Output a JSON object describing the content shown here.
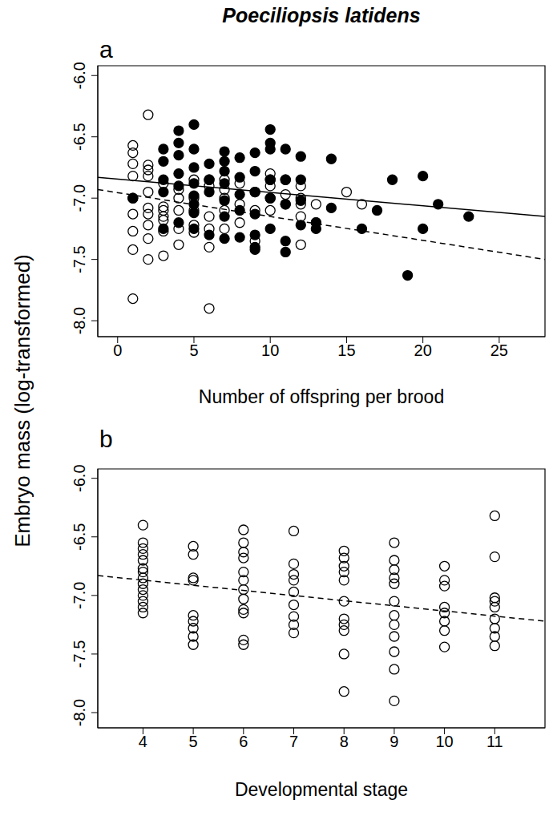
{
  "title": "Poeciliopsis latidens",
  "y_label": "Embryo mass (log-transformed)",
  "chart_data": [
    {
      "type": "scatter",
      "panel": "a",
      "x_label": "Number of offspring per brood",
      "xlim": [
        -1.3,
        28
      ],
      "xticks": [
        0,
        5,
        10,
        15,
        20,
        25
      ],
      "ylim": [
        -8.13,
        -5.92
      ],
      "yticks": [
        {
          "value": -8,
          "label": "-8.0"
        },
        -7.5,
        {
          "value": -7,
          "label": "-7.0"
        },
        -6.5,
        {
          "value": -6,
          "label": "-6.0"
        }
      ],
      "series": [
        {
          "type": "scatter",
          "marker": "open",
          "color": "#000000",
          "x": [
            1,
            1,
            1,
            1,
            1,
            1,
            1,
            1,
            1,
            2,
            2,
            2,
            2,
            2,
            2,
            2,
            2,
            2,
            2,
            3,
            3,
            3,
            3,
            3,
            3,
            3,
            4,
            4,
            4,
            4,
            4,
            5,
            5,
            5,
            5,
            5,
            6,
            6,
            6,
            6,
            6,
            6,
            7,
            7,
            7,
            7,
            7,
            8,
            8,
            8,
            9,
            9,
            9,
            10,
            10,
            10,
            10,
            10,
            11,
            11,
            11,
            12,
            12,
            12,
            12,
            12,
            13,
            13,
            15,
            16
          ],
          "values": [
            -6.57,
            -6.63,
            -6.72,
            -6.82,
            -7.0,
            -7.13,
            -7.27,
            -7.42,
            -7.82,
            -6.32,
            -6.73,
            -6.77,
            -6.82,
            -6.95,
            -7.08,
            -7.13,
            -7.22,
            -7.33,
            -7.5,
            -6.88,
            -7.07,
            -7.1,
            -7.15,
            -7.18,
            -7.27,
            -7.47,
            -6.93,
            -7.0,
            -7.1,
            -7.25,
            -7.38,
            -6.85,
            -7.0,
            -7.1,
            -7.22,
            -7.28,
            -6.85,
            -6.9,
            -7.15,
            -7.25,
            -7.4,
            -7.9,
            -6.85,
            -6.93,
            -7.0,
            -7.1,
            -7.25,
            -6.88,
            -7.05,
            -7.2,
            -6.95,
            -7.1,
            -7.35,
            -6.8,
            -6.85,
            -6.9,
            -7.0,
            -7.1,
            -6.85,
            -6.97,
            -7.05,
            -6.9,
            -7.0,
            -7.05,
            -7.15,
            -7.38,
            -7.05,
            -7.2,
            -6.95,
            -7.05
          ]
        },
        {
          "type": "scatter",
          "marker": "filled",
          "color": "#000000",
          "x": [
            1,
            3,
            3,
            3,
            3,
            3,
            4,
            4,
            4,
            4,
            4,
            4,
            5,
            5,
            5,
            5,
            5,
            5,
            5,
            5,
            6,
            6,
            6,
            6,
            7,
            7,
            7,
            7,
            7,
            7,
            7,
            8,
            8,
            8,
            8,
            8,
            9,
            9,
            9,
            9,
            9,
            9,
            9,
            10,
            10,
            10,
            10,
            10,
            10,
            11,
            11,
            11,
            11,
            11,
            12,
            12,
            12,
            12,
            13,
            13,
            14,
            14,
            16,
            17,
            18,
            19,
            20,
            20,
            21,
            23
          ],
          "values": [
            -7.0,
            -6.6,
            -6.7,
            -6.85,
            -6.95,
            -7.25,
            -6.45,
            -6.55,
            -6.65,
            -6.8,
            -6.9,
            -7.2,
            -6.4,
            -6.6,
            -6.75,
            -6.88,
            -6.98,
            -7.05,
            -7.12,
            -7.25,
            -6.72,
            -6.85,
            -6.95,
            -7.3,
            -6.62,
            -6.7,
            -6.78,
            -6.88,
            -7.02,
            -7.15,
            -7.33,
            -6.67,
            -6.83,
            -6.97,
            -7.1,
            -7.32,
            -6.63,
            -6.78,
            -6.95,
            -7.13,
            -7.3,
            -7.4,
            -7.42,
            -6.44,
            -6.55,
            -6.6,
            -6.85,
            -7.0,
            -7.25,
            -6.6,
            -6.85,
            -7.05,
            -7.35,
            -7.44,
            -6.66,
            -6.85,
            -7.02,
            -7.22,
            -7.2,
            -7.25,
            -6.68,
            -7.08,
            -7.25,
            -7.1,
            -6.85,
            -7.63,
            -6.82,
            -7.25,
            -7.05,
            -7.15
          ]
        },
        {
          "type": "line",
          "line_style": "solid",
          "color": "#000000",
          "x": [
            -1.3,
            28
          ],
          "values": [
            -6.83,
            -7.15
          ]
        },
        {
          "type": "line",
          "line_style": "dashed",
          "color": "#000000",
          "x": [
            -1.3,
            28
          ],
          "values": [
            -6.93,
            -7.5
          ]
        }
      ]
    },
    {
      "type": "scatter",
      "panel": "b",
      "x_label": "Developmental stage",
      "xlim": [
        3.1,
        12.0
      ],
      "xticks": [
        4,
        5,
        6,
        7,
        8,
        9,
        10,
        11
      ],
      "ylim": [
        -8.13,
        -5.92
      ],
      "yticks": [
        {
          "value": -8,
          "label": "-8.0"
        },
        -7.5,
        {
          "value": -7,
          "label": "-7.0"
        },
        -6.5,
        {
          "value": -6,
          "label": "-6.0"
        }
      ],
      "series": [
        {
          "type": "scatter",
          "marker": "open",
          "color": "#000000",
          "x": [
            4,
            4,
            4,
            4,
            4,
            4,
            4,
            4,
            4,
            4,
            4,
            4,
            4,
            4,
            5,
            5,
            5,
            5,
            5,
            5,
            5,
            5,
            5,
            6,
            6,
            6,
            6,
            6,
            6,
            6,
            6,
            6,
            6,
            6,
            6,
            7,
            7,
            7,
            7,
            7,
            7,
            7,
            7,
            7,
            8,
            8,
            8,
            8,
            8,
            8,
            8,
            8,
            8,
            8,
            8,
            9,
            9,
            9,
            9,
            9,
            9,
            9,
            9,
            9,
            9,
            9,
            9,
            10,
            10,
            10,
            10,
            10,
            10,
            10,
            10,
            11,
            11,
            11,
            11,
            11,
            11,
            11,
            11,
            11
          ],
          "values": [
            -6.4,
            -6.55,
            -6.6,
            -6.65,
            -6.7,
            -6.77,
            -6.8,
            -6.85,
            -6.9,
            -6.95,
            -7.0,
            -7.05,
            -7.1,
            -7.15,
            -6.58,
            -6.65,
            -6.85,
            -6.87,
            -7.17,
            -7.22,
            -7.28,
            -7.35,
            -7.42,
            -6.44,
            -6.55,
            -6.63,
            -6.68,
            -6.8,
            -6.87,
            -6.95,
            -7.03,
            -7.12,
            -7.15,
            -7.38,
            -7.42,
            -6.45,
            -6.73,
            -6.82,
            -6.87,
            -6.97,
            -7.08,
            -7.18,
            -7.25,
            -7.32,
            -6.62,
            -6.68,
            -6.75,
            -6.8,
            -6.87,
            -7.05,
            -7.2,
            -7.25,
            -7.3,
            -7.5,
            -7.82,
            -6.55,
            -6.7,
            -6.78,
            -6.85,
            -6.9,
            -7.05,
            -7.17,
            -7.25,
            -7.35,
            -7.48,
            -7.63,
            -7.9,
            -6.75,
            -6.87,
            -6.92,
            -7.1,
            -7.15,
            -7.22,
            -7.3,
            -7.44,
            -6.32,
            -6.67,
            -7.02,
            -7.05,
            -7.1,
            -7.2,
            -7.28,
            -7.35,
            -7.43
          ]
        },
        {
          "type": "line",
          "line_style": "dashed",
          "color": "#000000",
          "x": [
            3.1,
            12.0
          ],
          "values": [
            -6.83,
            -7.22
          ]
        }
      ]
    }
  ]
}
